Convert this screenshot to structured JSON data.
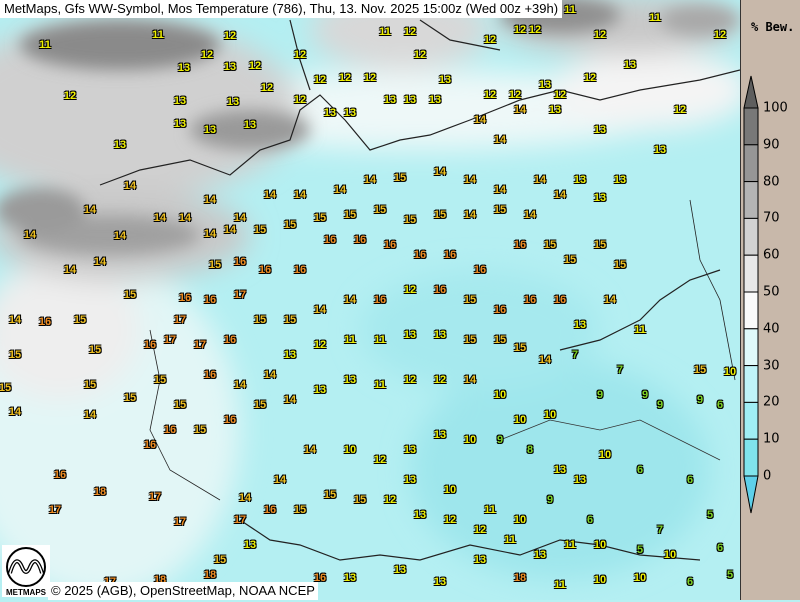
{
  "header": {
    "title": "MetMaps, Gfs WW-Symbol, Mos Temperature (786), Thu, 13. Nov. 2025 15:00z (Wed 00z +39h)"
  },
  "footer": {
    "copyright": "© 2025 (AGB), OpenStreetMap, NOAA NCEP",
    "logo_text": "METMAPS"
  },
  "legend": {
    "title": "% Bew.",
    "ticks": [
      "100",
      "90",
      "80",
      "70",
      "60",
      "50",
      "40",
      "30",
      "20",
      "10",
      "0"
    ],
    "band_colors": [
      "#787878",
      "#969696",
      "#b4b4b4",
      "#d2d2d2",
      "#e8e8e8",
      "#fafafa",
      "#e0fafa",
      "#c0f4f8",
      "#a0eef4",
      "#80e4ec"
    ],
    "over_color": "#5e5e5e",
    "under_color": "#5ed0ea"
  },
  "temperature_colors": {
    "cold": "#7ed321",
    "mild": "#f0f000",
    "warm": "#f0c020",
    "hot": "#f08c20"
  },
  "stations": [
    11,
    11,
    12,
    12,
    13,
    13,
    12,
    12,
    12,
    12,
    13,
    13,
    13,
    13,
    13,
    13,
    12,
    12,
    12,
    12,
    13,
    13,
    13,
    13,
    13,
    13,
    12,
    12,
    11,
    12,
    12,
    12,
    11,
    12,
    13,
    12,
    12,
    13,
    14,
    14,
    14,
    13,
    13,
    12,
    12,
    11,
    12,
    12,
    13,
    14,
    14,
    14,
    14,
    14,
    14,
    14,
    14,
    15,
    14,
    14,
    14,
    14,
    13,
    13,
    13,
    14,
    14,
    15,
    14,
    15,
    15,
    15,
    15,
    15,
    15,
    15,
    14,
    14,
    14,
    14,
    14,
    14,
    14,
    15,
    16,
    16,
    16,
    16,
    16,
    16,
    16,
    16,
    16,
    16,
    15,
    15,
    15,
    15,
    16,
    16,
    17,
    17,
    16,
    17,
    17,
    16,
    15,
    15,
    14,
    14,
    16,
    12,
    16,
    15,
    16,
    16,
    16,
    13,
    14,
    11,
    14,
    16,
    15,
    15,
    14,
    15,
    15,
    15,
    15,
    15,
    15,
    15,
    16,
    14,
    14,
    13,
    12,
    11,
    11,
    13,
    13,
    15,
    15,
    15,
    14,
    7,
    7,
    15,
    10,
    9,
    9,
    9,
    9,
    6,
    10,
    10,
    10,
    14,
    12,
    12,
    11,
    13,
    13,
    14,
    15,
    16,
    15,
    16,
    16,
    14,
    14,
    16,
    18,
    17,
    17,
    17,
    14,
    14,
    14,
    10,
    12,
    13,
    13,
    10,
    9,
    8,
    13,
    13,
    10,
    6,
    6,
    5,
    7,
    5,
    10,
    11,
    13,
    11,
    12,
    12,
    13,
    12,
    15,
    15,
    15,
    16,
    17,
    13,
    15,
    18,
    18,
    17,
    16,
    13,
    13,
    13,
    13,
    18,
    11,
    10,
    10,
    6,
    6,
    5,
    10,
    6,
    9,
    10,
    11,
    10,
    13
  ]
}
